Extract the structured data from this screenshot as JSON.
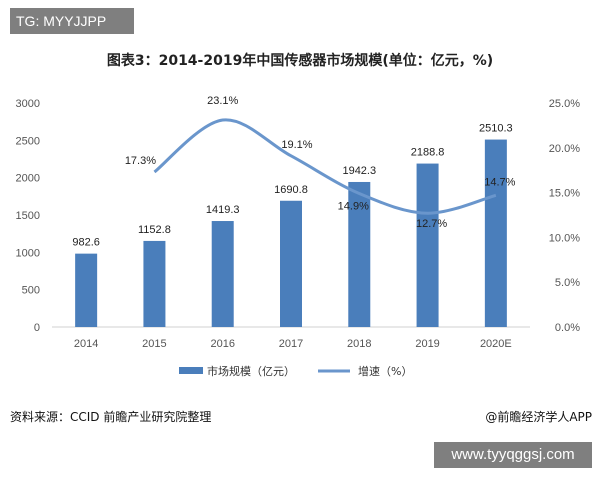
{
  "header": {
    "tag": "TG: MYYJJPP"
  },
  "footer": {
    "source": "资料来源：CCID 前瞻产业研究院整理",
    "credit": "@前瞻经济学人APP",
    "site": "www.tyyqggsj.com"
  },
  "colors": {
    "bar": "#4a7ebb",
    "line": "#6a96cc",
    "tag_bg": "#7f7f7f"
  },
  "chart_data": {
    "type": "bar",
    "title": "图表3：2014-2019年中国传感器市场规模(单位：亿元，%)",
    "categories": [
      "2014",
      "2015",
      "2016",
      "2017",
      "2018",
      "2019",
      "2020E"
    ],
    "series": [
      {
        "name": "市场规模（亿元）",
        "type": "bar",
        "values": [
          982.6,
          1152.8,
          1419.3,
          1690.8,
          1942.3,
          2188.8,
          2510.3
        ],
        "labels": [
          "982.6",
          "1152.8",
          "1419.3",
          "1690.8",
          "1942.3",
          "2188.8",
          "2510.3"
        ]
      },
      {
        "name": "增速（%）",
        "type": "line",
        "axis": "right",
        "smooth": true,
        "values": [
          null,
          17.3,
          23.1,
          19.1,
          14.9,
          12.7,
          14.7
        ],
        "labels": [
          "",
          "17.3%",
          "23.1%",
          "19.1%",
          "14.9%",
          "12.7%",
          "14.7%"
        ]
      }
    ],
    "y_left": {
      "ylim": [
        0,
        3000
      ],
      "ticks": [
        "0",
        "500",
        "1000",
        "1500",
        "2000",
        "2500",
        "3000"
      ]
    },
    "y_right": {
      "ylim": [
        0,
        25
      ],
      "ticks": [
        "0.0%",
        "5.0%",
        "10.0%",
        "15.0%",
        "20.0%",
        "25.0%"
      ]
    },
    "grid": false,
    "legend": "bottom"
  }
}
